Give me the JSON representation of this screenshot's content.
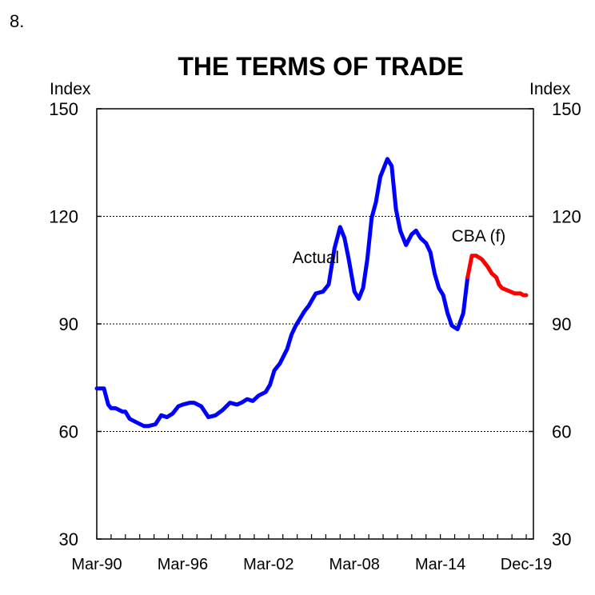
{
  "figure_number": "8.",
  "chart_data": {
    "type": "line",
    "title": "THE TERMS OF TRADE",
    "ylabel_left": "Index",
    "ylabel_right": "Index",
    "ylim": [
      30,
      150
    ],
    "yticks": [
      30,
      60,
      90,
      120,
      150
    ],
    "ytick_labels": [
      "30",
      "60",
      "90",
      "120",
      "150"
    ],
    "gridlines": [
      60,
      90,
      120
    ],
    "grid_style": "dotted",
    "xlim": [
      1990.0,
      2020.5
    ],
    "xticks": [
      1990.0,
      1996.0,
      2002.0,
      2008.0,
      2014.0,
      2020.0
    ],
    "xtick_labels": [
      "Mar-90",
      "Mar-96",
      "Mar-02",
      "Mar-08",
      "Mar-14",
      "Dec-19"
    ],
    "series": [
      {
        "name": "Actual",
        "color": "#0000ff",
        "label_anchor": [
          2005.3,
          107
        ],
        "x": [
          1990.0,
          1990.5,
          1990.8,
          1991.0,
          1991.3,
          1991.8,
          1992.0,
          1992.3,
          1992.8,
          1993.3,
          1993.6,
          1994.1,
          1994.5,
          1994.9,
          1995.3,
          1995.7,
          1996.0,
          1996.5,
          1996.8,
          1997.3,
          1997.8,
          1998.3,
          1998.8,
          1999.3,
          1999.8,
          2000.1,
          2000.5,
          2000.9,
          2001.3,
          2001.8,
          2002.1,
          2002.4,
          2002.8,
          2003.3,
          2003.6,
          2003.9,
          2004.2,
          2004.5,
          2004.8,
          2005.3,
          2005.8,
          2006.2,
          2006.6,
          2007.0,
          2007.3,
          2007.6,
          2008.0,
          2008.3,
          2008.6,
          2008.9,
          2009.2,
          2009.5,
          2009.8,
          2010.3,
          2010.6,
          2010.9,
          2011.2,
          2011.6,
          2012.0,
          2012.3,
          2012.6,
          2013.0,
          2013.3,
          2013.6,
          2013.9,
          2014.2,
          2014.5,
          2014.8,
          2015.2,
          2015.6,
          2015.9,
          2016.2,
          2016.5,
          2016.9,
          2017.1,
          2017.3,
          2017.6,
          2017.9,
          2018.1,
          2018.3,
          2018.6,
          2018.9,
          2019.2,
          2019.6,
          2019.8,
          2020.0
        ],
        "y": [
          72,
          72,
          67.5,
          66.5,
          66.5,
          65.5,
          65.5,
          63.5,
          62.5,
          61.5,
          61.5,
          62,
          64.5,
          64,
          65,
          67,
          67.5,
          68,
          68,
          67,
          64,
          64.5,
          66,
          68,
          67.5,
          68,
          69,
          68.5,
          70,
          71,
          73,
          77,
          79,
          83,
          87,
          89.5,
          91.5,
          93.5,
          95,
          98.5,
          99,
          101,
          111,
          117,
          114,
          108,
          99,
          97,
          100,
          108,
          119.5,
          124,
          131,
          136,
          134,
          122,
          116,
          112,
          115,
          116,
          114,
          112.5,
          110,
          104,
          100,
          98,
          93,
          89.5,
          88.5,
          93,
          103,
          109,
          109,
          108,
          107,
          106,
          104,
          103,
          101,
          100,
          99.5,
          99,
          98.5,
          98.5,
          98,
          98
        ],
        "segments": [
          {
            "name": "Actual",
            "color": "#0000ff",
            "from": 0,
            "to": 70,
            "show_label": true
          },
          {
            "name": "CBA (f)",
            "color": "#ff0000",
            "from": 70,
            "to": 85,
            "show_label": true
          }
        ]
      }
    ],
    "forecast_label": "CBA (f)",
    "forecast_color": "#ff0000",
    "forecast_label_anchor": [
      2016.0,
      113
    ]
  }
}
